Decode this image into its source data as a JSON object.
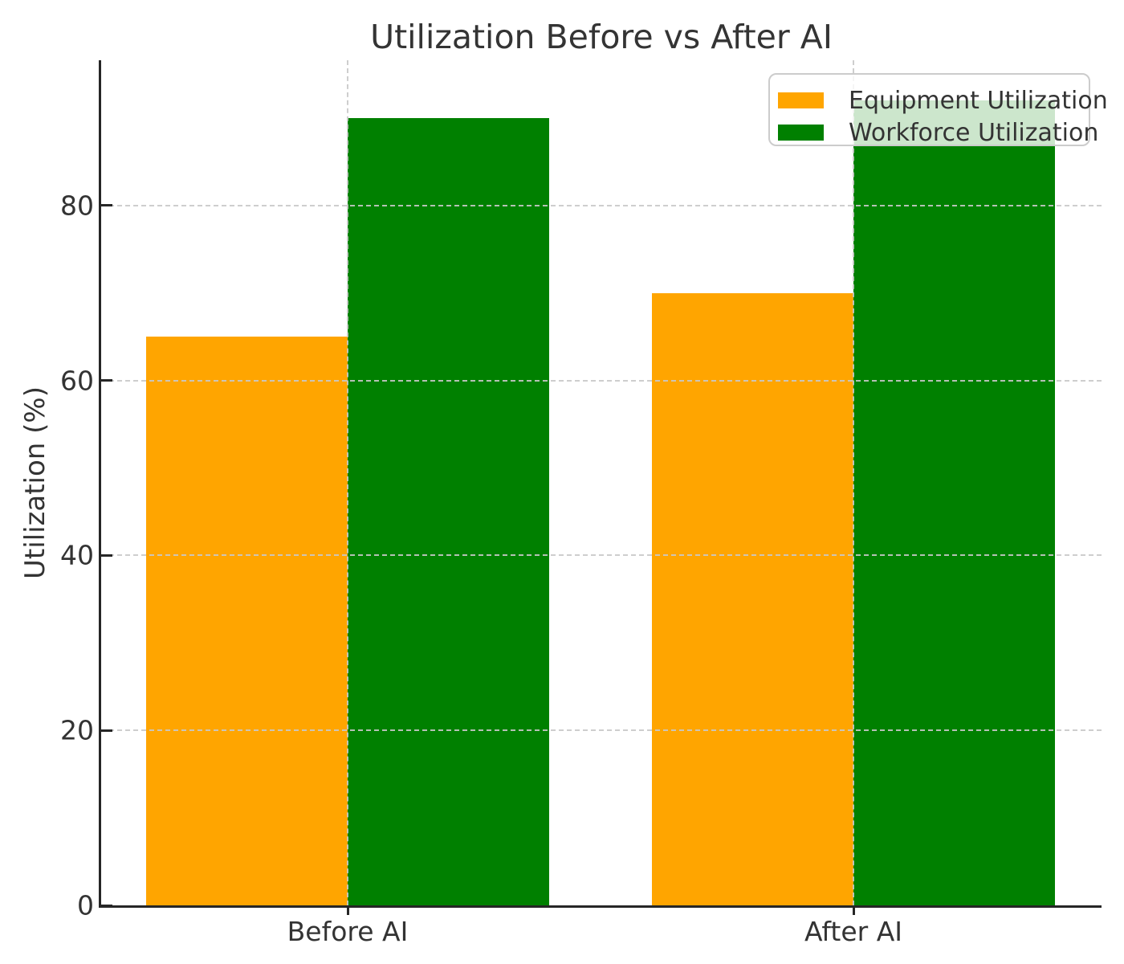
{
  "chart_data": {
    "type": "bar",
    "title": "Utilization Before vs After AI",
    "xlabel": "",
    "ylabel": "Utilization (%)",
    "categories": [
      "Before AI",
      "After AI"
    ],
    "series": [
      {
        "name": "Equipment Utilization",
        "color": "#FFA500",
        "values": [
          65,
          70
        ]
      },
      {
        "name": "Workforce Utilization",
        "color": "#008000",
        "values": [
          90,
          92
        ]
      }
    ],
    "ylim": [
      0,
      96.6
    ],
    "yticks": [
      0,
      20,
      40,
      60,
      80
    ],
    "grid": true,
    "grid_style": "dashed",
    "legend_position": "upper right",
    "background_color": "#ffffff",
    "text_color": "#333333"
  }
}
